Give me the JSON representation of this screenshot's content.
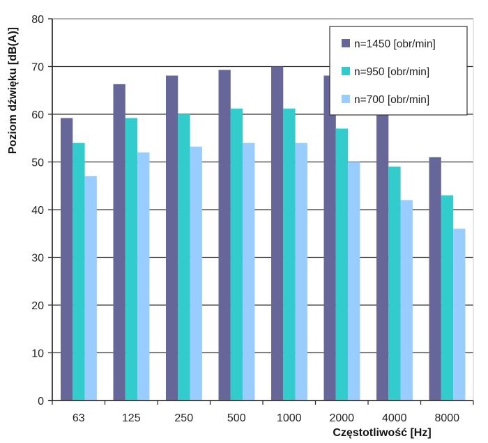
{
  "chart_data": {
    "type": "bar",
    "title": "",
    "xlabel": "Częstotliwość [Hz]",
    "ylabel": "Poziom dźwięku [dB(A)]",
    "categories": [
      "63",
      "125",
      "250",
      "500",
      "1000",
      "2000",
      "4000",
      "8000"
    ],
    "ylim": [
      0,
      80
    ],
    "yticks": [
      0,
      10,
      20,
      30,
      40,
      50,
      60,
      70,
      80
    ],
    "grid": true,
    "legend_position": "top-right",
    "series": [
      {
        "name": "n=1450 [obr/min]",
        "color": "#666699",
        "values": [
          59.2,
          66.3,
          68.1,
          69.3,
          70,
          68.1,
          60,
          51
        ]
      },
      {
        "name": "n=950 [obr/min]",
        "color": "#33CCCC",
        "values": [
          54,
          59.2,
          60,
          61.2,
          61.2,
          57,
          49,
          43
        ]
      },
      {
        "name": "n=700 [obr/min]",
        "color": "#99CCFF",
        "values": [
          47,
          52,
          53.2,
          54,
          54,
          50,
          42,
          36
        ]
      }
    ]
  }
}
